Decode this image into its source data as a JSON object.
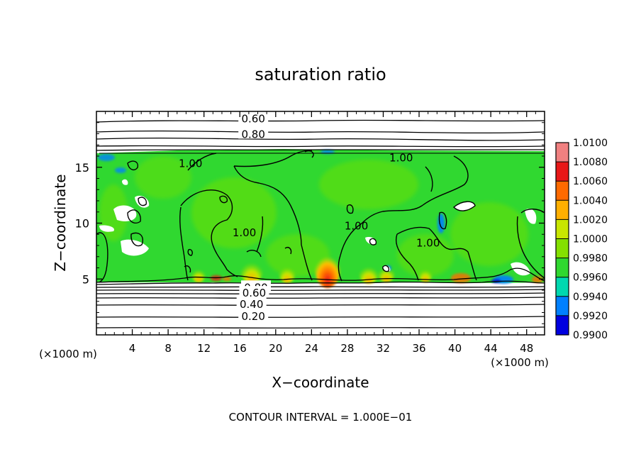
{
  "chart_data": {
    "type": "heatmap",
    "title": "saturation ratio",
    "xlabel": "X−coordinate",
    "ylabel": "Z−coordinate",
    "x_unit": "(×1000 m)",
    "y_unit": "(×1000 m)",
    "xlim": [
      0,
      50
    ],
    "ylim": [
      0,
      20
    ],
    "x_ticks": [
      4,
      8,
      12,
      16,
      20,
      24,
      28,
      32,
      36,
      40,
      44,
      48
    ],
    "y_ticks": [
      5,
      10,
      15
    ],
    "footer": "CONTOUR INTERVAL = 1.000E−01",
    "colorbar": {
      "levels": [
        "1.0100",
        "1.0080",
        "1.0060",
        "1.0040",
        "1.0020",
        "1.0000",
        "0.9980",
        "0.9960",
        "0.9940",
        "0.9920",
        "0.9900"
      ],
      "colors": [
        "#f08080",
        "#e81818",
        "#ff6a00",
        "#ffb000",
        "#c8e600",
        "#84e000",
        "#30d830",
        "#00d8b0",
        "#0080ff",
        "#0000e0",
        "#5a0080"
      ]
    },
    "contour_labels": [
      {
        "text": "0.60",
        "x": 17.5,
        "z": 19.4
      },
      {
        "text": "0.80",
        "x": 17.5,
        "z": 18.0
      },
      {
        "text": "1.00",
        "x": 10.5,
        "z": 15.4
      },
      {
        "text": "1.00",
        "x": 34.0,
        "z": 15.9
      },
      {
        "text": "1.00",
        "x": 16.5,
        "z": 9.2
      },
      {
        "text": "1.00",
        "x": 29.0,
        "z": 9.8
      },
      {
        "text": "1.00",
        "x": 37.0,
        "z": 8.3
      },
      {
        "text": "0.80",
        "x": 17.8,
        "z": 4.3
      },
      {
        "text": "0.60",
        "x": 17.6,
        "z": 3.8
      },
      {
        "text": "0.40",
        "x": 17.3,
        "z": 2.8
      },
      {
        "text": "0.20",
        "x": 17.5,
        "z": 1.7
      }
    ]
  }
}
